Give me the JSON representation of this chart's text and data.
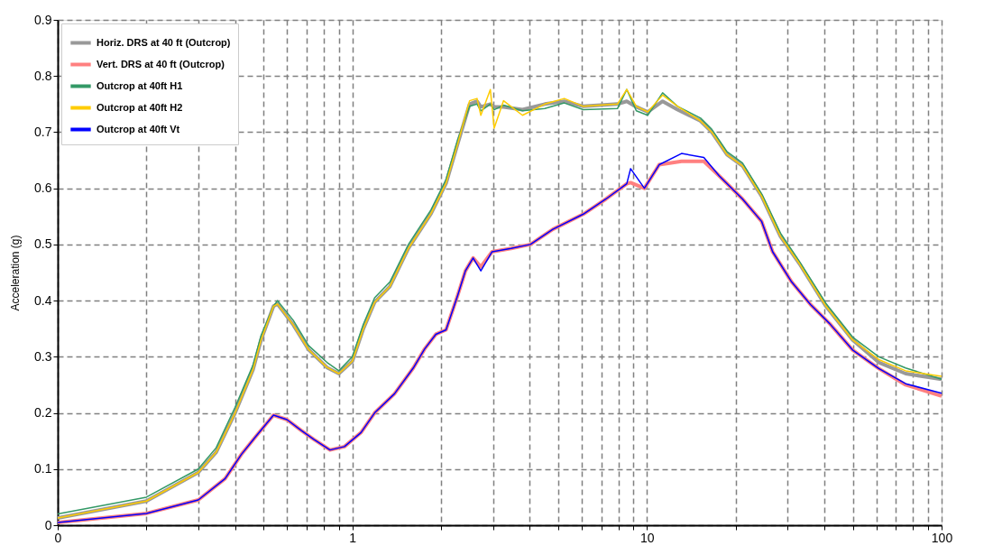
{
  "chart_data": {
    "type": "line",
    "ylabel": "Acceleration (g)",
    "log": "x",
    "xlim": [
      0.1,
      100
    ],
    "xticks": [
      {
        "value": 0.1,
        "label": "0"
      },
      {
        "value": 0.2,
        "label": null
      },
      {
        "value": 0.3,
        "label": null
      },
      {
        "value": 0.4,
        "label": null
      },
      {
        "value": 0.5,
        "label": null
      },
      {
        "value": 0.6,
        "label": null
      },
      {
        "value": 0.7,
        "label": null
      },
      {
        "value": 0.8,
        "label": null
      },
      {
        "value": 0.9,
        "label": null
      },
      1,
      {
        "value": 2,
        "label": null
      },
      {
        "value": 3,
        "label": null
      },
      {
        "value": 4,
        "label": null
      },
      {
        "value": 5,
        "label": null
      },
      {
        "value": 6,
        "label": null
      },
      {
        "value": 7,
        "label": null
      },
      {
        "value": 8,
        "label": null
      },
      {
        "value": 9,
        "label": null
      },
      10,
      {
        "value": 20,
        "label": null
      },
      {
        "value": 30,
        "label": null
      },
      {
        "value": 40,
        "label": null
      },
      {
        "value": 50,
        "label": null
      },
      {
        "value": 60,
        "label": null
      },
      {
        "value": 70,
        "label": null
      },
      {
        "value": 80,
        "label": null
      },
      {
        "value": 90,
        "label": null
      },
      100
    ],
    "ylim": [
      0,
      0.9
    ],
    "yticks": [
      0,
      0.1,
      0.2,
      0.3,
      0.4,
      0.5,
      0.6,
      0.7,
      0.8,
      0.9
    ],
    "grid": true,
    "legend": "top left",
    "line_style": "solid",
    "marker": "none",
    "series": [
      {
        "name": "Horiz. DRS at 40 ft (Outcrop)",
        "color": "#999999",
        "x": [
          0.1,
          0.2,
          0.3,
          0.345,
          0.4,
          0.46,
          0.49,
          0.54,
          0.557,
          0.63,
          0.71,
          0.82,
          0.9,
          1.0,
          1.09,
          1.19,
          1.34,
          1.55,
          1.85,
          2.08,
          2.28,
          2.5,
          2.65,
          2.73,
          2.94,
          3.03,
          3.26,
          3.78,
          4.5,
          5.24,
          6.08,
          7.94,
          8.54,
          9.2,
          10.06,
          11.3,
          12.7,
          15.2,
          16.6,
          18.7,
          21.1,
          24.5,
          28.4,
          32.9,
          40.5,
          49.9,
          61.2,
          75.5,
          100
        ],
        "values": [
          0.013,
          0.043,
          0.094,
          0.13,
          0.2,
          0.277,
          0.33,
          0.39,
          0.394,
          0.357,
          0.313,
          0.281,
          0.27,
          0.292,
          0.35,
          0.397,
          0.425,
          0.493,
          0.555,
          0.609,
          0.68,
          0.75,
          0.755,
          0.745,
          0.75,
          0.745,
          0.745,
          0.74,
          0.75,
          0.755,
          0.746,
          0.75,
          0.755,
          0.745,
          0.736,
          0.755,
          0.74,
          0.72,
          0.7,
          0.66,
          0.64,
          0.586,
          0.514,
          0.466,
          0.39,
          0.33,
          0.29,
          0.27,
          0.26
        ]
      },
      {
        "name": "Vert.  DRS at 40 ft (Outcrop)",
        "color": "#ff8080",
        "x": [
          0.1,
          0.2,
          0.3,
          0.37,
          0.42,
          0.47,
          0.54,
          0.6,
          0.67,
          0.74,
          0.84,
          0.94,
          1.07,
          1.19,
          1.39,
          1.61,
          1.76,
          1.92,
          2.08,
          2.28,
          2.42,
          2.57,
          2.73,
          2.98,
          3.46,
          4.02,
          4.79,
          6.08,
          7.26,
          8.54,
          8.8,
          9.8,
          11,
          13.1,
          15.6,
          17.6,
          21.1,
          24.5,
          26.7,
          31,
          35.9,
          41.7,
          49.9,
          61.2,
          75.5,
          100
        ],
        "values": [
          0.005,
          0.021,
          0.045,
          0.083,
          0.126,
          0.158,
          0.196,
          0.188,
          0.169,
          0.153,
          0.134,
          0.14,
          0.165,
          0.2,
          0.234,
          0.28,
          0.314,
          0.34,
          0.348,
          0.41,
          0.453,
          0.476,
          0.46,
          0.487,
          0.493,
          0.5,
          0.527,
          0.554,
          0.581,
          0.608,
          0.61,
          0.6,
          0.642,
          0.648,
          0.648,
          0.622,
          0.581,
          0.541,
          0.487,
          0.433,
          0.393,
          0.359,
          0.312,
          0.279,
          0.25,
          0.23
        ]
      },
      {
        "name": "Outcrop at 40ft H1",
        "color": "#339966",
        "x": [
          0.1,
          0.2,
          0.3,
          0.345,
          0.4,
          0.46,
          0.49,
          0.54,
          0.557,
          0.63,
          0.71,
          0.82,
          0.9,
          1.0,
          1.09,
          1.19,
          1.34,
          1.55,
          1.85,
          2.08,
          2.28,
          2.5,
          2.65,
          2.73,
          2.94,
          3.03,
          3.26,
          3.78,
          4.5,
          5.24,
          6.08,
          7.94,
          8.54,
          9.2,
          10.06,
          11.3,
          12.7,
          15.2,
          16.6,
          18.7,
          21.1,
          24.5,
          28.4,
          32.9,
          40.5,
          49.9,
          61.2,
          75.5,
          100
        ],
        "values": [
          0.02,
          0.05,
          0.1,
          0.138,
          0.21,
          0.285,
          0.338,
          0.39,
          0.4,
          0.365,
          0.32,
          0.29,
          0.275,
          0.3,
          0.358,
          0.405,
          0.433,
          0.5,
          0.562,
          0.616,
          0.687,
          0.746,
          0.75,
          0.738,
          0.75,
          0.74,
          0.748,
          0.738,
          0.742,
          0.752,
          0.74,
          0.742,
          0.776,
          0.738,
          0.73,
          0.77,
          0.746,
          0.725,
          0.705,
          0.665,
          0.645,
          0.59,
          0.52,
          0.47,
          0.395,
          0.335,
          0.3,
          0.28,
          0.26
        ]
      },
      {
        "name": "Outcrop at 40ft H2",
        "color": "#ffcc00",
        "x": [
          0.1,
          0.2,
          0.3,
          0.345,
          0.4,
          0.46,
          0.49,
          0.54,
          0.557,
          0.63,
          0.71,
          0.82,
          0.9,
          1.0,
          1.09,
          1.19,
          1.34,
          1.55,
          1.85,
          2.08,
          2.28,
          2.5,
          2.65,
          2.73,
          2.94,
          3.03,
          3.26,
          3.78,
          4.5,
          5.24,
          6.08,
          7.94,
          8.54,
          9.2,
          10.06,
          11.3,
          12.7,
          15.2,
          16.6,
          18.7,
          21.1,
          24.5,
          28.4,
          32.9,
          40.5,
          49.9,
          61.2,
          75.5,
          100
        ],
        "values": [
          0.013,
          0.043,
          0.094,
          0.13,
          0.2,
          0.277,
          0.33,
          0.39,
          0.394,
          0.357,
          0.313,
          0.281,
          0.27,
          0.292,
          0.35,
          0.397,
          0.425,
          0.493,
          0.555,
          0.609,
          0.68,
          0.756,
          0.76,
          0.73,
          0.776,
          0.707,
          0.756,
          0.73,
          0.75,
          0.76,
          0.746,
          0.75,
          0.776,
          0.746,
          0.736,
          0.766,
          0.746,
          0.72,
          0.7,
          0.66,
          0.64,
          0.586,
          0.514,
          0.466,
          0.39,
          0.33,
          0.295,
          0.275,
          0.265
        ]
      },
      {
        "name": "Outcrop at 40ft Vt",
        "color": "#0000ff",
        "x": [
          0.1,
          0.2,
          0.3,
          0.37,
          0.42,
          0.47,
          0.54,
          0.6,
          0.67,
          0.74,
          0.84,
          0.94,
          1.07,
          1.19,
          1.39,
          1.61,
          1.76,
          1.92,
          2.08,
          2.28,
          2.42,
          2.57,
          2.73,
          2.98,
          3.46,
          4.02,
          4.79,
          6.08,
          7.26,
          8.54,
          8.8,
          9.8,
          11,
          13.1,
          15.6,
          17.6,
          21.1,
          24.5,
          26.7,
          31,
          35.9,
          41.7,
          49.9,
          61.2,
          75.5,
          100
        ],
        "values": [
          0.005,
          0.021,
          0.045,
          0.083,
          0.126,
          0.158,
          0.196,
          0.188,
          0.169,
          0.153,
          0.134,
          0.14,
          0.165,
          0.2,
          0.234,
          0.28,
          0.314,
          0.34,
          0.348,
          0.41,
          0.453,
          0.476,
          0.453,
          0.487,
          0.493,
          0.5,
          0.527,
          0.554,
          0.581,
          0.608,
          0.635,
          0.6,
          0.642,
          0.662,
          0.655,
          0.622,
          0.581,
          0.541,
          0.487,
          0.433,
          0.393,
          0.359,
          0.312,
          0.279,
          0.252,
          0.235
        ]
      }
    ]
  }
}
